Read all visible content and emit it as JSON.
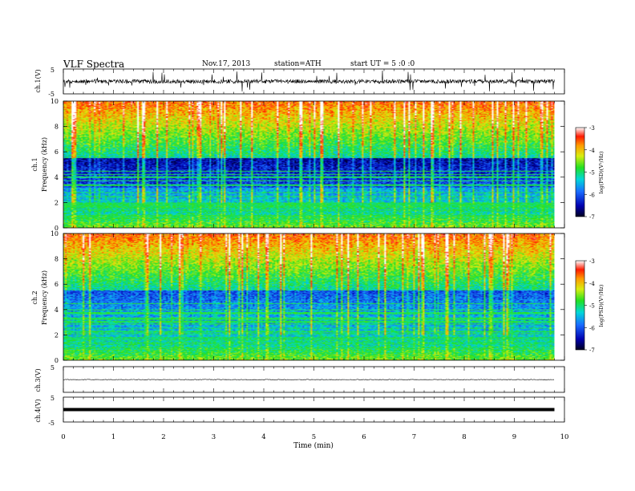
{
  "header": {
    "title": "VLF  Spectra",
    "date": "Nov.17, 2013",
    "station": "station=ATH",
    "start": "start  UT  =   5  :0  :0"
  },
  "panels": {
    "ch1_label": "ch.1(V)",
    "ch3_label": "ch.3(V)",
    "ch4_label": "ch.4(V)",
    "spec1_label": "ch.1",
    "spec2_label": "ch.2",
    "freq_label": "Frequency  (kHz)",
    "cb_label": "log(PSD)(V²/Hz)"
  },
  "chart_data": {
    "type": "heatmap",
    "x": {
      "label": "Time  (min)",
      "range": [
        0,
        10
      ],
      "ticks": [
        "0",
        "1",
        "2",
        "3",
        "4",
        "5",
        "6",
        "7",
        "8",
        "9",
        "10"
      ]
    },
    "waveform_yticks": [
      "5",
      "-5"
    ],
    "freq_yticks": [
      "0",
      "2",
      "4",
      "6",
      "8",
      "10"
    ],
    "freq_range_khz": [
      0,
      10
    ],
    "data_end_min": 9.8,
    "colorbar": {
      "range": [
        -7,
        -3
      ],
      "ticks": [
        "-3",
        "-4",
        "-5",
        "-6",
        "-7"
      ]
    },
    "waveform_range_v": [
      -5,
      5
    ],
    "ch3_level_v": 0.4,
    "ch4_level_v": 0
  }
}
